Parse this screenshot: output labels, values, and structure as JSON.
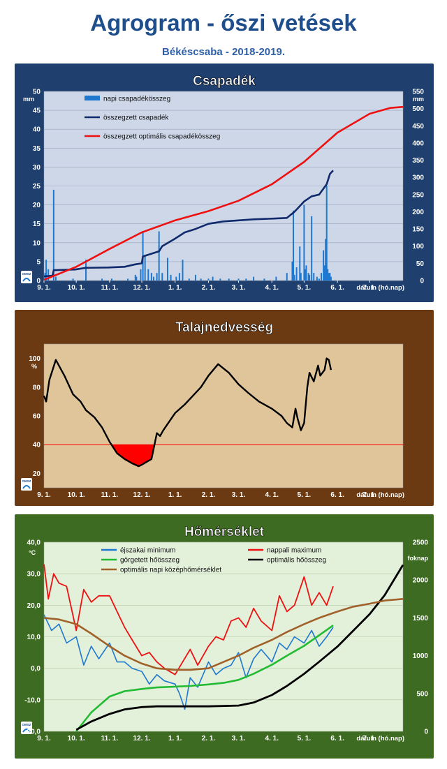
{
  "header": {
    "title": "Agrogram - őszi vetések",
    "subtitle": "Békéscsaba - 2018-2019."
  },
  "colors": {
    "title": "#1f4e8c",
    "precip_frame": "#1f3f6e",
    "precip_plot": "#cdd7e8",
    "daily_bar": "#1f78d0",
    "cumulative_precip": "#102a6b",
    "optimal": "#ee1111",
    "moisture_frame": "#6b3a12",
    "moisture_plot": "#e0c49a",
    "deficit_fill": "#ff0000",
    "temp_frame": "#3e6b22",
    "temp_plot": "#e3f0da",
    "night_min": "#1f78d0",
    "day_max": "#ee1111",
    "rolling_sum": "#22bb33",
    "optimal_sum": "#000000",
    "optimal_mean": "#a0622a"
  },
  "x_ticks": [
    "9. 1.",
    "10. 1.",
    "11. 1.",
    "12. 1.",
    "1. 1.",
    "2. 1.",
    "3. 1.",
    "4. 1.",
    "5. 1.",
    "6. 1.",
    "7. 1."
  ],
  "x_axis_label": "dátum (hó.nap)",
  "logo_text": "OMSZ",
  "chart_data": [
    {
      "type": "bar",
      "title": "Csapadék",
      "ylabel": "mm",
      "y2label": "mm",
      "ylim": [
        0,
        50
      ],
      "y_ticks": [
        "0",
        "5",
        "10",
        "15",
        "20",
        "25",
        "30",
        "35",
        "40",
        "45",
        "50"
      ],
      "y2lim": [
        0,
        550
      ],
      "y2_ticks": [
        "0",
        "50",
        "100",
        "150",
        "200",
        "250",
        "300",
        "350",
        "400",
        "450",
        "500",
        "550"
      ],
      "xlabel": "dátum (hó.nap)",
      "legend": [
        "napi csapadékösszeg",
        "összegzett csapadék",
        "összegzett optimális csapadékösszeg"
      ],
      "legend_position": "top-left",
      "grid": true,
      "series": [
        {
          "name": "napi csapadékösszeg",
          "kind": "bar",
          "axis": "left",
          "x": [
            "2018-09-02",
            "2018-09-03",
            "2018-09-05",
            "2018-09-10",
            "2018-09-12",
            "2018-09-28",
            "2018-10-10",
            "2018-10-25",
            "2018-11-03",
            "2018-11-18",
            "2018-11-25",
            "2018-11-26",
            "2018-11-30",
            "2018-12-02",
            "2018-12-04",
            "2018-12-07",
            "2018-12-10",
            "2018-12-12",
            "2018-12-15",
            "2018-12-17",
            "2018-12-20",
            "2018-12-25",
            "2018-12-28",
            "2019-01-02",
            "2019-01-05",
            "2019-01-08",
            "2019-01-14",
            "2019-01-20",
            "2019-01-25",
            "2019-02-01",
            "2019-02-05",
            "2019-02-12",
            "2019-02-20",
            "2019-03-01",
            "2019-03-08",
            "2019-03-15",
            "2019-03-25",
            "2019-04-05",
            "2019-04-15",
            "2019-04-20",
            "2019-04-21",
            "2019-04-22",
            "2019-04-24",
            "2019-04-27",
            "2019-04-28",
            "2019-05-01",
            "2019-05-02",
            "2019-05-03",
            "2019-05-05",
            "2019-05-06",
            "2019-05-08",
            "2019-05-10",
            "2019-05-13",
            "2019-05-15",
            "2019-05-17",
            "2019-05-19",
            "2019-05-20",
            "2019-05-21",
            "2019-05-22",
            "2019-05-23",
            "2019-05-24",
            "2019-05-25",
            "2019-05-26"
          ],
          "values": [
            2,
            5.5,
            3,
            24,
            1,
            0.5,
            5.5,
            0.5,
            0.5,
            0.5,
            1.5,
            1,
            3,
            13,
            6.5,
            3,
            2,
            1,
            2,
            13,
            2,
            6,
            1.5,
            1,
            2,
            5.5,
            0.5,
            1.5,
            0.5,
            0.5,
            1,
            0.5,
            0.5,
            0.5,
            0.5,
            1,
            0.5,
            1,
            2,
            5,
            18.5,
            1.5,
            3.5,
            9,
            2,
            20,
            3,
            4,
            2,
            1.5,
            17,
            2,
            1,
            0.5,
            2,
            8,
            4,
            11,
            25,
            3,
            2,
            2,
            1
          ]
        },
        {
          "name": "összegzett csapadék",
          "kind": "line",
          "axis": "right",
          "x": [
            "2018-09-01",
            "2018-09-09",
            "2018-09-10",
            "2018-09-30",
            "2018-10-10",
            "2018-10-31",
            "2018-11-15",
            "2018-11-25",
            "2018-12-01",
            "2018-12-02",
            "2018-12-17",
            "2018-12-20",
            "2018-12-31",
            "2019-01-10",
            "2019-01-20",
            "2019-02-01",
            "2019-02-15",
            "2019-03-01",
            "2019-03-15",
            "2019-04-01",
            "2019-04-15",
            "2019-04-22",
            "2019-05-01",
            "2019-05-08",
            "2019-05-15",
            "2019-05-22",
            "2019-05-25",
            "2019-05-28"
          ],
          "values": [
            12,
            14,
            30,
            32,
            37,
            38,
            40,
            47,
            50,
            70,
            85,
            100,
            120,
            140,
            150,
            165,
            172,
            175,
            178,
            180,
            182,
            200,
            230,
            245,
            250,
            280,
            310,
            320
          ]
        },
        {
          "name": "összegzett optimális csapadékösszeg",
          "kind": "line",
          "axis": "right",
          "x": [
            "2018-09-01",
            "2018-10-01",
            "2018-11-01",
            "2018-12-01",
            "2019-01-01",
            "2019-02-01",
            "2019-03-01",
            "2019-04-01",
            "2019-05-01",
            "2019-06-01",
            "2019-07-01",
            "2019-07-20",
            "2019-08-01"
          ],
          "values": [
            2,
            40,
            92,
            140,
            175,
            202,
            232,
            280,
            345,
            430,
            485,
            502,
            505
          ]
        }
      ]
    },
    {
      "type": "area",
      "title": "Talajnedvesség",
      "ylabel": "%",
      "ylim": [
        10,
        110
      ],
      "y_ticks": [
        "20",
        "40",
        "60",
        "80",
        "100"
      ],
      "threshold": 40,
      "xlabel": "dátum (hó.nap)",
      "grid": false,
      "series": [
        {
          "name": "",
          "kind": "line",
          "x": [
            "2018-09-01",
            "2018-09-03",
            "2018-09-06",
            "2018-09-12",
            "2018-09-20",
            "2018-09-28",
            "2018-10-05",
            "2018-10-10",
            "2018-10-18",
            "2018-10-25",
            "2018-11-01",
            "2018-11-08",
            "2018-11-15",
            "2018-11-22",
            "2018-11-25",
            "2018-11-28",
            "2018-12-01",
            "2018-12-10",
            "2018-12-15",
            "2018-12-18",
            "2018-12-21",
            "2019-01-01",
            "2019-01-10",
            "2019-01-15",
            "2019-01-25",
            "2019-02-01",
            "2019-02-10",
            "2019-02-20",
            "2019-03-01",
            "2019-03-10",
            "2019-03-20",
            "2019-04-01",
            "2019-04-10",
            "2019-04-15",
            "2019-04-20",
            "2019-04-23",
            "2019-04-25",
            "2019-04-28",
            "2019-05-01",
            "2019-05-04",
            "2019-05-06",
            "2019-05-10",
            "2019-05-14",
            "2019-05-16",
            "2019-05-20",
            "2019-05-22",
            "2019-05-24",
            "2019-05-26"
          ],
          "values": [
            74,
            70,
            85,
            99,
            88,
            75,
            70,
            64,
            59,
            52,
            42,
            34,
            30,
            27,
            26,
            25,
            26,
            30,
            48,
            46,
            50,
            62,
            68,
            72,
            80,
            88,
            96,
            90,
            82,
            76,
            70,
            65,
            60,
            55,
            52,
            65,
            58,
            50,
            55,
            80,
            90,
            84,
            95,
            88,
            92,
            100,
            99,
            92
          ]
        }
      ]
    },
    {
      "type": "line",
      "title": "Hőmérséklet",
      "ylabel": "°C",
      "y2label": "foknap",
      "ylim": [
        -20,
        40
      ],
      "y_ticks": [
        "-20,0",
        "-10,0",
        "0,0",
        "10,0",
        "20,0",
        "30,0",
        "40,0"
      ],
      "y2lim": [
        0,
        2500
      ],
      "y2_ticks": [
        "0",
        "500",
        "1000",
        "1500",
        "2000",
        "2500"
      ],
      "xlabel": "dátum (hó.nap)",
      "legend": [
        "éjszakai minimum",
        "nappali maximum",
        "görgetett hőösszeg",
        "optimális hőösszeg",
        "optimális napi középhőmérséklet"
      ],
      "legend_position": "top",
      "grid": true,
      "series": [
        {
          "name": "éjszakai minimum",
          "kind": "line",
          "axis": "left",
          "x": [
            "2018-09-01",
            "2018-09-08",
            "2018-09-15",
            "2018-09-22",
            "2018-10-01",
            "2018-10-08",
            "2018-10-15",
            "2018-10-22",
            "2018-11-01",
            "2018-11-08",
            "2018-11-15",
            "2018-11-22",
            "2018-12-01",
            "2018-12-08",
            "2018-12-15",
            "2018-12-22",
            "2019-01-01",
            "2019-01-05",
            "2019-01-10",
            "2019-01-15",
            "2019-01-22",
            "2019-02-01",
            "2019-02-08",
            "2019-02-15",
            "2019-02-22",
            "2019-03-01",
            "2019-03-08",
            "2019-03-15",
            "2019-03-22",
            "2019-04-01",
            "2019-04-08",
            "2019-04-15",
            "2019-04-22",
            "2019-05-01",
            "2019-05-08",
            "2019-05-15",
            "2019-05-22",
            "2019-05-28"
          ],
          "values": [
            17,
            12,
            14,
            8,
            10,
            1,
            7,
            3,
            8,
            2,
            2,
            0,
            -1,
            -5,
            -2,
            -4,
            -5,
            -8,
            -13,
            -3,
            -6,
            2,
            -2,
            0,
            1,
            5,
            -3,
            3,
            6,
            2,
            8,
            6,
            10,
            8,
            12,
            7,
            10,
            13
          ]
        },
        {
          "name": "nappali maximum",
          "kind": "line",
          "axis": "left",
          "x": [
            "2018-09-01",
            "2018-09-05",
            "2018-09-10",
            "2018-09-15",
            "2018-09-22",
            "2018-10-01",
            "2018-10-08",
            "2018-10-15",
            "2018-10-22",
            "2018-11-01",
            "2018-11-08",
            "2018-11-15",
            "2018-11-22",
            "2018-12-01",
            "2018-12-08",
            "2018-12-15",
            "2018-12-22",
            "2019-01-01",
            "2019-01-08",
            "2019-01-15",
            "2019-01-22",
            "2019-02-01",
            "2019-02-08",
            "2019-02-15",
            "2019-02-22",
            "2019-03-01",
            "2019-03-08",
            "2019-03-15",
            "2019-03-22",
            "2019-04-01",
            "2019-04-08",
            "2019-04-15",
            "2019-04-22",
            "2019-05-01",
            "2019-05-08",
            "2019-05-15",
            "2019-05-22",
            "2019-05-28"
          ],
          "values": [
            33,
            22,
            30,
            27,
            26,
            12,
            25,
            21,
            23,
            23,
            18,
            13,
            9,
            4,
            5,
            2,
            0,
            -2,
            2,
            6,
            1,
            7,
            10,
            9,
            15,
            16,
            13,
            19,
            15,
            12,
            23,
            18,
            20,
            29,
            20,
            24,
            20,
            26
          ]
        },
        {
          "name": "görgetett hőösszeg",
          "kind": "line",
          "axis": "right",
          "x": [
            "2018-10-01",
            "2018-10-15",
            "2018-11-01",
            "2018-11-15",
            "2018-12-01",
            "2018-12-15",
            "2019-01-01",
            "2019-01-15",
            "2019-02-01",
            "2019-02-15",
            "2019-03-01",
            "2019-03-15",
            "2019-04-01",
            "2019-04-15",
            "2019-05-01",
            "2019-05-15",
            "2019-05-28"
          ],
          "values": [
            0,
            250,
            460,
            530,
            560,
            580,
            590,
            600,
            620,
            640,
            680,
            760,
            880,
            1000,
            1130,
            1270,
            1400
          ]
        },
        {
          "name": "optimális hőösszeg",
          "kind": "line",
          "axis": "right",
          "x": [
            "2018-10-01",
            "2018-10-15",
            "2018-11-01",
            "2018-11-15",
            "2018-12-01",
            "2018-12-15",
            "2019-01-01",
            "2019-02-01",
            "2019-03-01",
            "2019-03-15",
            "2019-04-01",
            "2019-04-15",
            "2019-05-01",
            "2019-05-15",
            "2019-06-01",
            "2019-06-15",
            "2019-07-01",
            "2019-07-15",
            "2019-08-01"
          ],
          "values": [
            20,
            130,
            230,
            290,
            320,
            330,
            330,
            330,
            340,
            380,
            480,
            600,
            760,
            920,
            1120,
            1320,
            1550,
            1800,
            2200
          ]
        },
        {
          "name": "optimális napi középhőmérséklet",
          "kind": "line",
          "axis": "left",
          "x": [
            "2018-09-01",
            "2018-09-15",
            "2018-10-01",
            "2018-10-15",
            "2018-11-01",
            "2018-11-15",
            "2018-12-01",
            "2018-12-15",
            "2019-01-01",
            "2019-01-15",
            "2019-02-01",
            "2019-02-15",
            "2019-03-01",
            "2019-03-15",
            "2019-04-01",
            "2019-04-15",
            "2019-05-01",
            "2019-05-15",
            "2019-06-01",
            "2019-06-15",
            "2019-07-01",
            "2019-07-15",
            "2019-08-01"
          ],
          "values": [
            16,
            15.5,
            14,
            11,
            7,
            4,
            1.5,
            0,
            -0.5,
            -0.5,
            0,
            2,
            4,
            6.5,
            9,
            11.5,
            14,
            16,
            18,
            19.5,
            20.5,
            21.5,
            22
          ]
        }
      ]
    }
  ]
}
